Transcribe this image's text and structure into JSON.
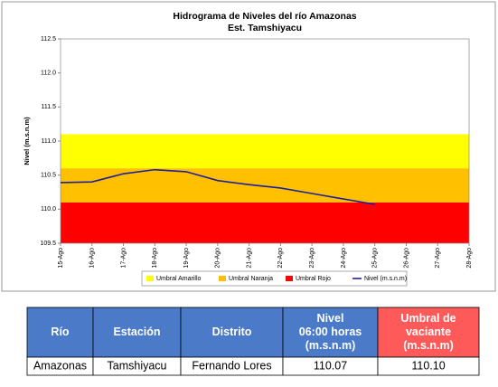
{
  "chart_data": {
    "type": "line",
    "title": [
      "Hidrograma de Niveles del río Amazonas",
      "Est. Tamshiyacu"
    ],
    "y_label": "Nivel (m.s.n.m)",
    "categories": [
      "15-Ago",
      "16-Ago",
      "17-Ago",
      "18-Ago",
      "19-Ago",
      "20-Ago",
      "21-Ago",
      "22-Ago",
      "23-Ago",
      "24-Ago",
      "25-Ago",
      "26-Ago",
      "27-Ago",
      "28-Ago"
    ],
    "ylim": [
      109.5,
      112.5
    ],
    "yticks": [
      109.5,
      {
        "value": 110,
        "label": "110.0"
      },
      110.5,
      {
        "value": 111,
        "label": "111.0"
      },
      111.5,
      {
        "value": 112,
        "label": "112.0"
      },
      112.5
    ],
    "bands": [
      {
        "name": "Umbral Amarillo",
        "color": "#ffff00",
        "value": 111.1
      },
      {
        "name": "Umbral Naranja",
        "color": "#ffc000",
        "value": 110.6
      },
      {
        "name": "Umbral Rojo",
        "color": "#ff0000",
        "value": 110.1
      }
    ],
    "series": [
      {
        "name": "Nivel (m.s.n.m)",
        "color": "#1f1f9f",
        "values": [
          110.39,
          110.4,
          110.52,
          110.58,
          110.55,
          110.42,
          110.36,
          110.31,
          110.23,
          110.15,
          110.07,
          null,
          null,
          null
        ]
      }
    ]
  },
  "table": {
    "header": [
      [
        "Río"
      ],
      [
        "Estación"
      ],
      [
        "Distrito"
      ],
      [
        "Nivel",
        "06:00 horas",
        "(m.s.n.m)"
      ],
      [
        "Umbral de",
        "vaciante",
        "(m.s.n.m)"
      ]
    ],
    "rows": [
      [
        "Amazonas",
        "Tamshiyacu",
        "Fernando Lores",
        "110.07",
        "110.10"
      ]
    ]
  }
}
